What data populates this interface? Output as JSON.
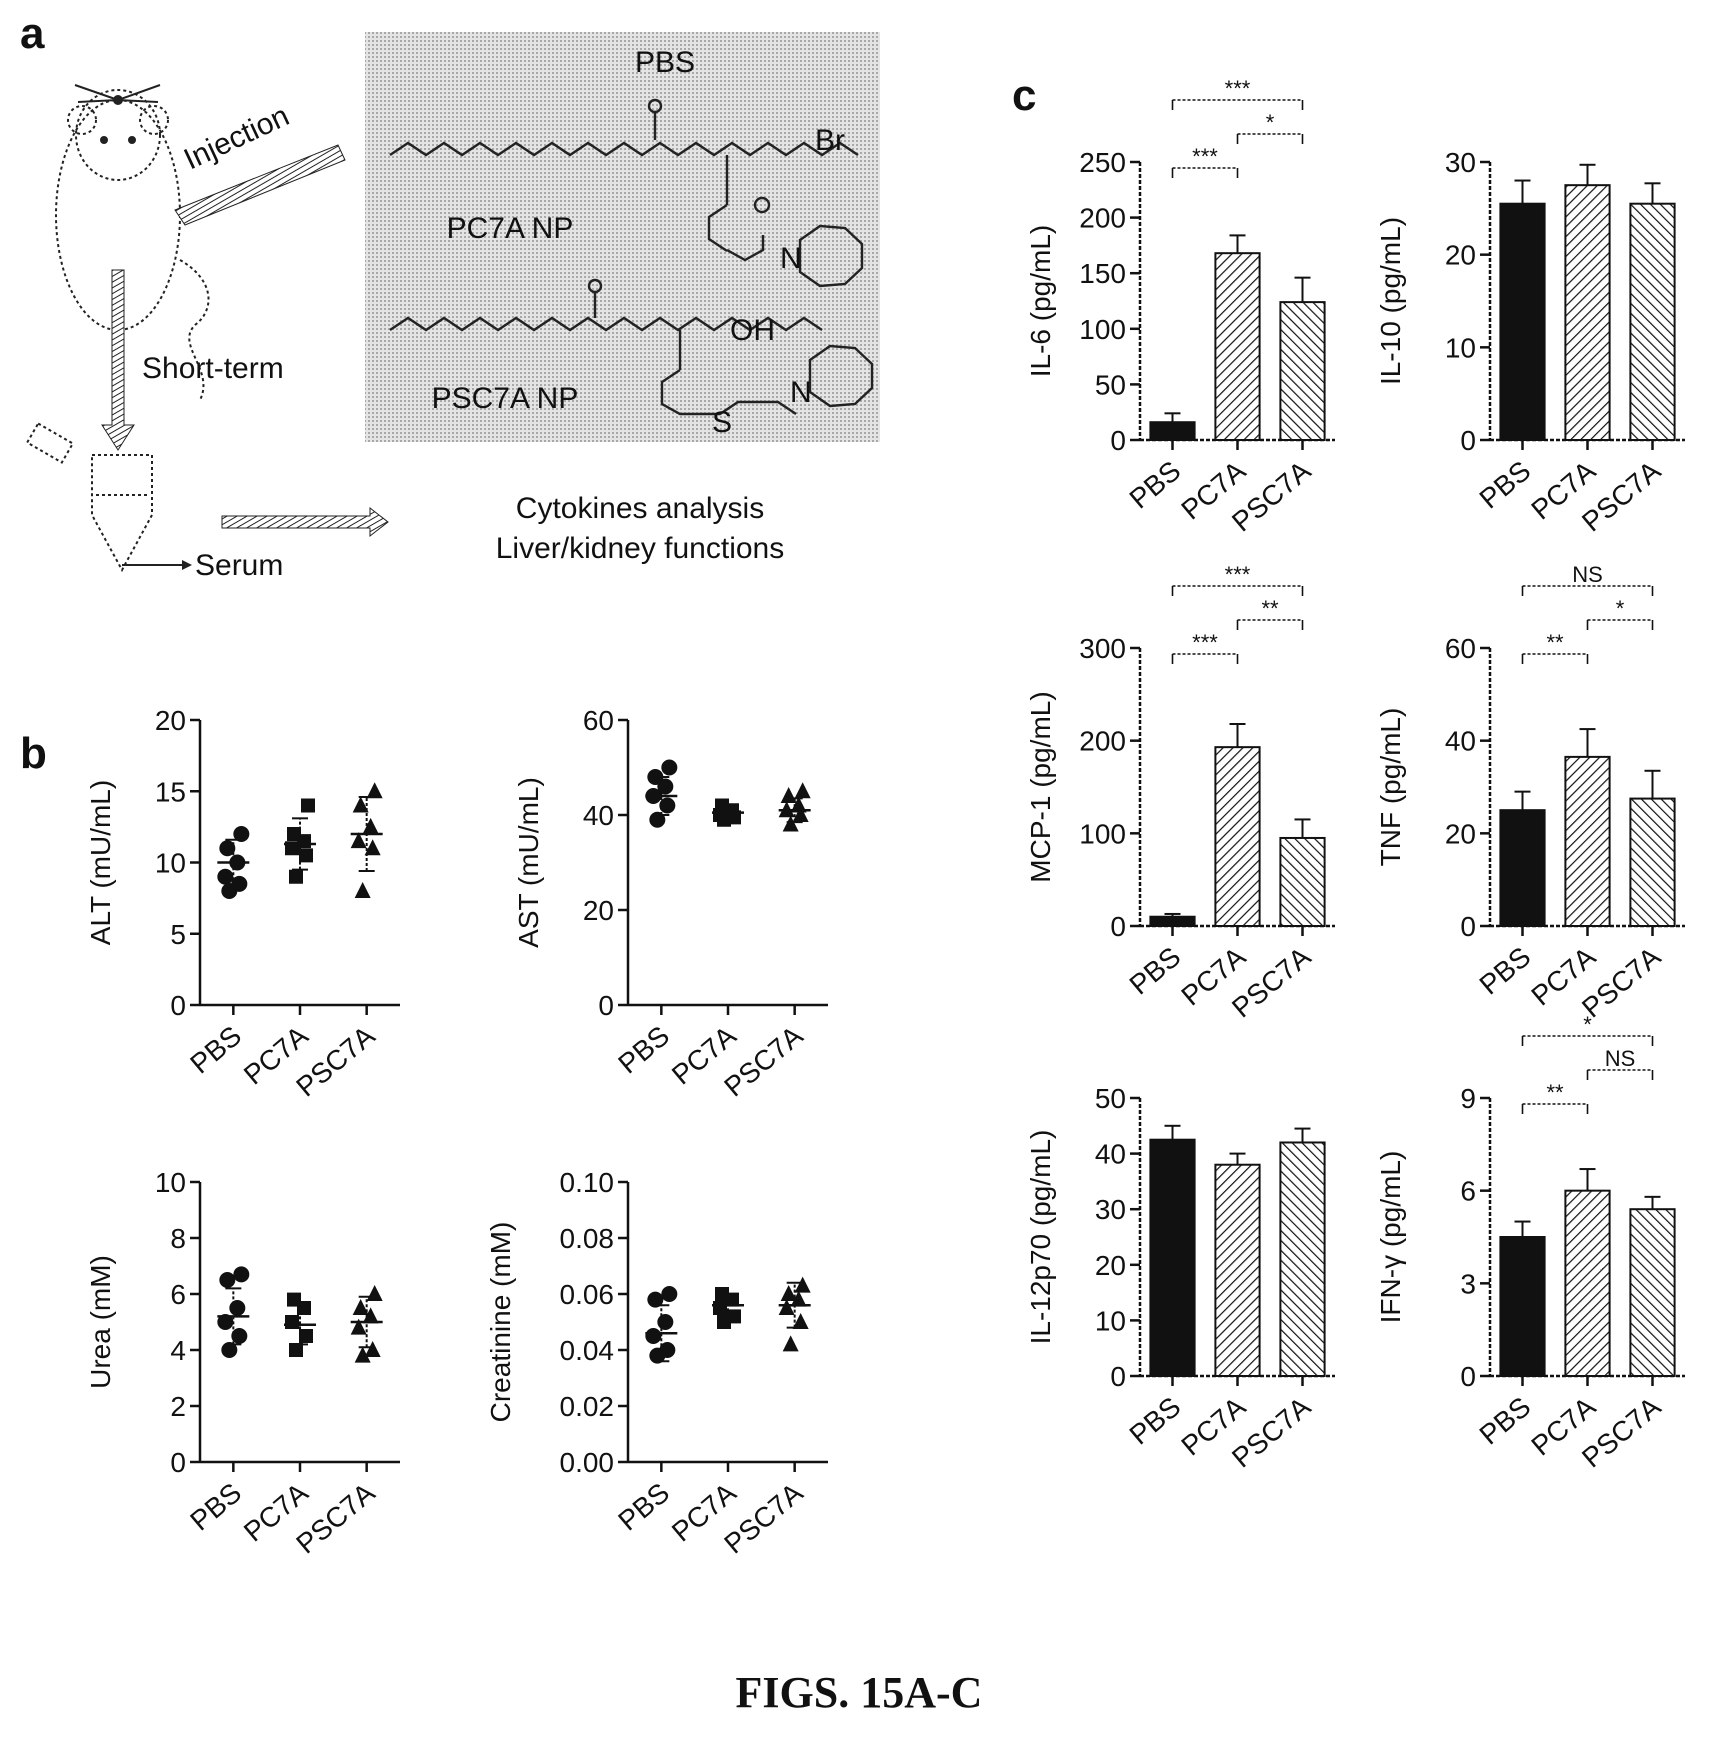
{
  "figure": {
    "caption": "FIGS. 15A-C",
    "panels": {
      "a": "a",
      "b": "b",
      "c": "c"
    }
  },
  "panel_a": {
    "box_labels": [
      "PBS",
      "PC7A NP",
      "PSC7A NP"
    ],
    "formula_labels": [
      "Br",
      "OH",
      "N",
      "N",
      "S"
    ],
    "flow_labels": [
      "Injection",
      "Short-term",
      "Serum"
    ],
    "outcomes": [
      "Cytokines analysis",
      "Liver/kidney functions"
    ]
  },
  "colors": {
    "black_bar": "#111111",
    "hatch": "#111111",
    "box_fill": "#d9d9d9"
  },
  "chart_data": [
    {
      "id": "alt",
      "type": "scatter",
      "ylabel": "ALT (mU/mL)",
      "categories": [
        "PBS",
        "PC7A",
        "PSC7A"
      ],
      "ylim": [
        0,
        20
      ],
      "yticks": [
        0,
        5,
        10,
        15,
        20
      ],
      "marker": [
        "circle",
        "square",
        "triangle"
      ],
      "points": [
        [
          8,
          8.5,
          9,
          10,
          11,
          12
        ],
        [
          9,
          10.5,
          11,
          11.5,
          12,
          14
        ],
        [
          8,
          11,
          11.5,
          12.5,
          14,
          15
        ]
      ],
      "mean": [
        10,
        11.3,
        12
      ],
      "sd": [
        1.6,
        1.8,
        2.6
      ]
    },
    {
      "id": "ast",
      "type": "scatter",
      "ylabel": "AST (mU/mL)",
      "categories": [
        "PBS",
        "PC7A",
        "PSC7A"
      ],
      "ylim": [
        0,
        60
      ],
      "yticks": [
        0,
        20,
        40,
        60
      ],
      "marker": [
        "circle",
        "square",
        "triangle"
      ],
      "points": [
        [
          39,
          42,
          44,
          46,
          48,
          50
        ],
        [
          39,
          39.5,
          40,
          41,
          42
        ],
        [
          38,
          40,
          41,
          42,
          44,
          45
        ]
      ],
      "mean": [
        44,
        40.5,
        41
      ],
      "sd": [
        4,
        1.2,
        2.5
      ]
    },
    {
      "id": "urea",
      "type": "scatter",
      "ylabel": "Urea (mM)",
      "categories": [
        "PBS",
        "PC7A",
        "PSC7A"
      ],
      "ylim": [
        0,
        10
      ],
      "yticks": [
        0,
        2,
        4,
        6,
        8,
        10
      ],
      "marker": [
        "circle",
        "square",
        "triangle"
      ],
      "points": [
        [
          4,
          4.5,
          5,
          5.5,
          6.5,
          6.7
        ],
        [
          4,
          4.5,
          5,
          5.5,
          5.8
        ],
        [
          3.8,
          4,
          4.8,
          5.2,
          5.5,
          6
        ]
      ],
      "mean": [
        5.2,
        4.9,
        5
      ],
      "sd": [
        1,
        0.7,
        0.9
      ]
    },
    {
      "id": "creatinine",
      "type": "scatter",
      "ylabel": "Creatinine (mM)",
      "categories": [
        "PBS",
        "PC7A",
        "PSC7A"
      ],
      "ylim": [
        0,
        0.1
      ],
      "yticks": [
        0,
        0.02,
        0.04,
        0.06,
        0.08,
        0.1
      ],
      "ytick_labels": [
        "0.00",
        "0.02",
        "0.04",
        "0.06",
        "0.08",
        "0.10"
      ],
      "marker": [
        "circle",
        "square",
        "triangle"
      ],
      "points": [
        [
          0.038,
          0.04,
          0.045,
          0.05,
          0.058,
          0.06
        ],
        [
          0.05,
          0.052,
          0.055,
          0.058,
          0.06
        ],
        [
          0.042,
          0.05,
          0.055,
          0.058,
          0.06,
          0.063
        ]
      ],
      "mean": [
        0.046,
        0.056,
        0.056
      ],
      "sd": [
        0.01,
        0.004,
        0.008
      ]
    },
    {
      "id": "il6",
      "type": "bar",
      "ylabel": "IL-6 (pg/mL)",
      "categories": [
        "PBS",
        "PC7A",
        "PSC7A"
      ],
      "ylim": [
        0,
        250
      ],
      "yticks": [
        0,
        50,
        100,
        150,
        200,
        250
      ],
      "values": [
        16,
        168,
        124
      ],
      "errors": [
        8,
        16,
        22
      ],
      "sig": [
        {
          "from": 0,
          "to": 1,
          "label": "***",
          "level": 1
        },
        {
          "from": 1,
          "to": 2,
          "label": "*",
          "level": 2
        },
        {
          "from": 0,
          "to": 2,
          "label": "***",
          "level": 3
        }
      ]
    },
    {
      "id": "il10",
      "type": "bar",
      "ylabel": "IL-10 (pg/mL)",
      "categories": [
        "PBS",
        "PC7A",
        "PSC7A"
      ],
      "ylim": [
        0,
        30
      ],
      "yticks": [
        0,
        10,
        20,
        30
      ],
      "values": [
        25.5,
        27.5,
        25.5
      ],
      "errors": [
        2.5,
        2.2,
        2.2
      ],
      "sig": []
    },
    {
      "id": "mcp1",
      "type": "bar",
      "ylabel": "MCP-1 (pg/mL)",
      "categories": [
        "PBS",
        "PC7A",
        "PSC7A"
      ],
      "ylim": [
        0,
        300
      ],
      "yticks": [
        0,
        100,
        200,
        300
      ],
      "values": [
        10,
        193,
        95
      ],
      "errors": [
        3,
        25,
        20
      ],
      "sig": [
        {
          "from": 0,
          "to": 1,
          "label": "***",
          "level": 1
        },
        {
          "from": 1,
          "to": 2,
          "label": "**",
          "level": 2
        },
        {
          "from": 0,
          "to": 2,
          "label": "***",
          "level": 3
        }
      ]
    },
    {
      "id": "tnf",
      "type": "bar",
      "ylabel": "TNF (pg/mL)",
      "categories": [
        "PBS",
        "PC7A",
        "PSC7A"
      ],
      "ylim": [
        0,
        60
      ],
      "yticks": [
        0,
        20,
        40,
        60
      ],
      "values": [
        25,
        36.5,
        27.5
      ],
      "errors": [
        4,
        6,
        6
      ],
      "sig": [
        {
          "from": 0,
          "to": 1,
          "label": "**",
          "level": 1
        },
        {
          "from": 1,
          "to": 2,
          "label": "*",
          "level": 2
        },
        {
          "from": 0,
          "to": 2,
          "label": "NS",
          "level": 3
        }
      ]
    },
    {
      "id": "il12p70",
      "type": "bar",
      "ylabel": "IL-12p70 (pg/mL)",
      "categories": [
        "PBS",
        "PC7A",
        "PSC7A"
      ],
      "ylim": [
        0,
        50
      ],
      "yticks": [
        0,
        10,
        20,
        30,
        40,
        50
      ],
      "values": [
        42.5,
        38,
        42
      ],
      "errors": [
        2.5,
        2,
        2.5
      ],
      "sig": []
    },
    {
      "id": "ifng",
      "type": "bar",
      "ylabel": "IFN-γ (pg/mL)",
      "categories": [
        "PBS",
        "PC7A",
        "PSC7A"
      ],
      "ylim": [
        0,
        9
      ],
      "yticks": [
        0,
        3,
        6,
        9
      ],
      "values": [
        4.5,
        6,
        5.4
      ],
      "errors": [
        0.5,
        0.7,
        0.4
      ],
      "sig": [
        {
          "from": 0,
          "to": 1,
          "label": "**",
          "level": 1
        },
        {
          "from": 1,
          "to": 2,
          "label": "NS",
          "level": 2
        },
        {
          "from": 0,
          "to": 2,
          "label": "*",
          "level": 3
        }
      ]
    }
  ]
}
